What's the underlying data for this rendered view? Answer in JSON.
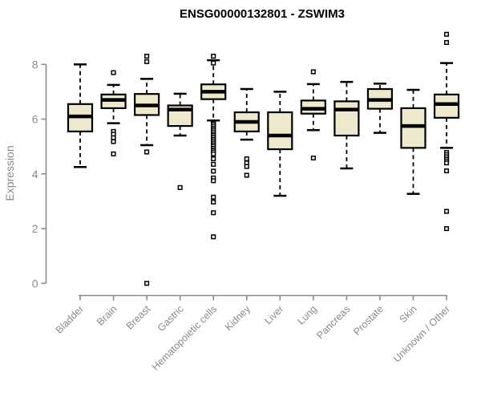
{
  "chart_data": {
    "type": "boxplot",
    "title": "ENSG00000132801 - ZSWIM3",
    "ylabel": "Expression",
    "xlabel": "",
    "ylim": [
      0,
      8
    ],
    "yticks": [
      0,
      2,
      4,
      6,
      8
    ],
    "grid": false,
    "legend": "none",
    "colors": {
      "box_fill": "#EEE8CD",
      "box_stroke": "#000000",
      "median": "#000000",
      "whisker": "#000000",
      "outlier_fill": "#FFFFFF",
      "outlier_stroke": "#000000",
      "axis": "#8A8A8A",
      "title": "#000000",
      "background": "#FFFFFF"
    },
    "categories": [
      "Bladder",
      "Brain",
      "Breast",
      "Gastric",
      "Hematopoietic cells",
      "Kidney",
      "Liver",
      "Lung",
      "Pancreas",
      "Prostate",
      "Skin",
      "Unknown / Other"
    ],
    "series": [
      {
        "category": "Bladder",
        "whisker_low": 4.25,
        "q1": 5.55,
        "median": 6.1,
        "q3": 6.55,
        "whisker_high": 8.0,
        "outliers": []
      },
      {
        "category": "Brain",
        "whisker_low": 5.85,
        "q1": 6.4,
        "median": 6.7,
        "q3": 6.9,
        "whisker_high": 7.25,
        "outliers": [
          7.7,
          5.55,
          5.45,
          5.32,
          5.18,
          4.73
        ]
      },
      {
        "category": "Breast",
        "whisker_low": 5.05,
        "q1": 6.15,
        "median": 6.5,
        "q3": 6.92,
        "whisker_high": 7.47,
        "outliers": [
          8.3,
          8.1,
          4.8,
          0.0
        ]
      },
      {
        "category": "Gastric",
        "whisker_low": 5.4,
        "q1": 5.75,
        "median": 6.35,
        "q3": 6.5,
        "whisker_high": 6.93,
        "outliers": [
          3.5
        ]
      },
      {
        "category": "Hematopoietic cells",
        "whisker_low": 5.95,
        "q1": 6.73,
        "median": 7.0,
        "q3": 7.27,
        "whisker_high": 8.15,
        "outliers": [
          8.3,
          8.05,
          5.85,
          5.8,
          5.73,
          5.66,
          5.6,
          5.53,
          5.46,
          5.4,
          5.33,
          5.26,
          5.2,
          5.13,
          5.06,
          5.0,
          4.93,
          4.86,
          4.8,
          4.73,
          4.55,
          4.35,
          4.1,
          3.85,
          3.75,
          3.15,
          2.97,
          2.58,
          1.7
        ]
      },
      {
        "category": "Kidney",
        "whisker_low": 5.25,
        "q1": 5.55,
        "median": 5.9,
        "q3": 6.25,
        "whisker_high": 7.1,
        "outliers": [
          4.55,
          4.4,
          4.27,
          3.95
        ]
      },
      {
        "category": "Liver",
        "whisker_low": 3.2,
        "q1": 4.9,
        "median": 5.4,
        "q3": 6.25,
        "whisker_high": 7.0,
        "outliers": []
      },
      {
        "category": "Lung",
        "whisker_low": 5.6,
        "q1": 6.2,
        "median": 6.38,
        "q3": 6.68,
        "whisker_high": 7.28,
        "outliers": [
          7.73,
          4.58
        ]
      },
      {
        "category": "Pancreas",
        "whisker_low": 4.2,
        "q1": 5.4,
        "median": 6.35,
        "q3": 6.65,
        "whisker_high": 7.36,
        "outliers": []
      },
      {
        "category": "Prostate",
        "whisker_low": 5.5,
        "q1": 6.38,
        "median": 6.7,
        "q3": 7.1,
        "whisker_high": 7.3,
        "outliers": []
      },
      {
        "category": "Skin",
        "whisker_low": 3.27,
        "q1": 4.95,
        "median": 5.75,
        "q3": 6.4,
        "whisker_high": 7.07,
        "outliers": []
      },
      {
        "category": "Unknown / Other",
        "whisker_low": 4.95,
        "q1": 6.05,
        "median": 6.55,
        "q3": 6.9,
        "whisker_high": 8.05,
        "outliers": [
          9.1,
          8.8,
          4.78,
          4.7,
          4.62,
          4.54,
          4.47,
          4.4,
          4.11,
          2.63,
          2.0
        ]
      }
    ]
  }
}
